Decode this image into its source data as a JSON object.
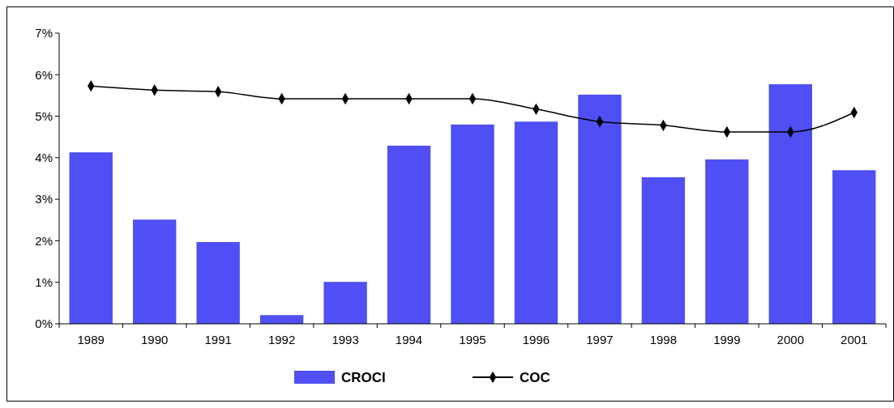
{
  "chart_data": {
    "type": "bar",
    "categories": [
      "1989",
      "1990",
      "1991",
      "1992",
      "1993",
      "1994",
      "1995",
      "1996",
      "1997",
      "1998",
      "1999",
      "2000",
      "2001"
    ],
    "series": [
      {
        "name": "CROCI",
        "color": "#4f4ff5",
        "values": [
          4.13,
          2.51,
          1.97,
          0.21,
          1.01,
          4.29,
          4.8,
          4.87,
          5.52,
          3.53,
          3.96,
          5.77,
          3.7
        ]
      },
      {
        "name": "COC",
        "type": "line",
        "color": "#000000",
        "marker": "diamond",
        "values": [
          5.73,
          5.63,
          5.59,
          5.42,
          5.42,
          5.42,
          5.42,
          5.17,
          4.87,
          4.78,
          4.62,
          4.62,
          5.09
        ]
      }
    ],
    "ylim": [
      0,
      7
    ],
    "yticks": [
      {
        "value": 0,
        "label": "0%"
      },
      {
        "value": 1,
        "label": "1%"
      },
      {
        "value": 2,
        "label": "2%"
      },
      {
        "value": 3,
        "label": "3%"
      },
      {
        "value": 4,
        "label": "4%"
      },
      {
        "value": 5,
        "label": "5%"
      },
      {
        "value": 6,
        "label": "6%"
      },
      {
        "value": 7,
        "label": "7%"
      }
    ],
    "legend": "bottom"
  }
}
